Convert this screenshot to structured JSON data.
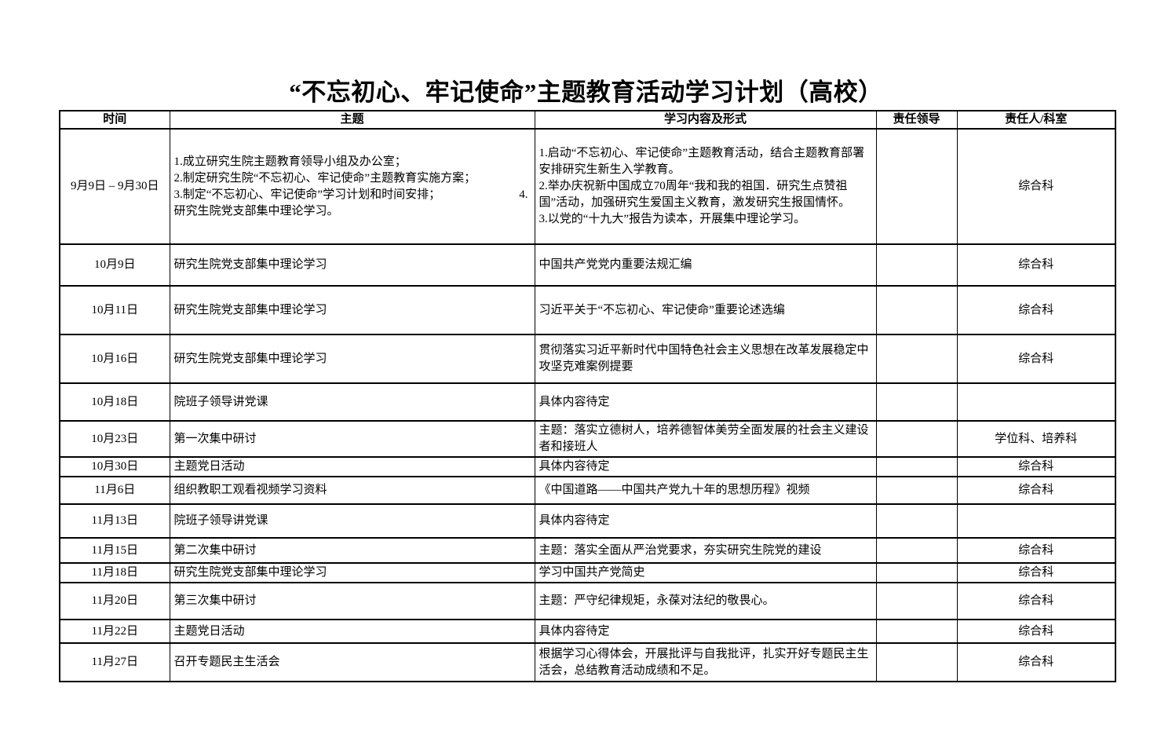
{
  "title": "“不忘初心、牢记使命”主题教育活动学习计划（高校）",
  "table": {
    "headers": [
      "时间",
      "主题",
      "学习内容及形式",
      "责任领导",
      "责任人/科室"
    ],
    "rows": [
      {
        "time": "9月9日 – 9月30日",
        "theme": [
          {
            "t": "1.成立研究生院主题教育领导小组及办公室；"
          },
          {
            "t": "2.制定研究生院“不忘初心、牢记使命”主题教育实施方案；"
          },
          {
            "l": "3.制定“不忘初心、牢记使命”学习计划和时间安排；",
            "r": "4."
          },
          {
            "t": "研究生院党支部集中理论学习。"
          }
        ],
        "content": [
          {
            "t": "1.启动“不忘初心、牢记使命”主题教育活动，结合主题教育部署安排研究生新生入学教育。"
          },
          {
            "t": "2.举办庆祝新中国成立70周年“我和我的祖国．研究生点赞祖国”活动，加强研究生爱国主义教育，激发研究生报国情怀。"
          },
          {
            "t": "3.以党的“十九大”报告为读本，开展集中理论学习。"
          }
        ],
        "leader": "",
        "dept": "综合科"
      },
      {
        "time": "10月9日",
        "theme": "研究生院党支部集中理论学习",
        "content": "中国共产党党内重要法规汇编",
        "leader": "",
        "dept": "综合科"
      },
      {
        "time": "10月11日",
        "theme": "研究生院党支部集中理论学习",
        "content": "习近平关于“不忘初心、牢记使命”重要论述选编",
        "leader": "",
        "dept": "综合科"
      },
      {
        "time": "10月16日",
        "theme": "研究生院党支部集中理论学习",
        "content": "贯彻落实习近平新时代中国特色社会主义思想在改革发展稳定中攻坚克难案例提要",
        "leader": "",
        "dept": "综合科"
      },
      {
        "time": "10月18日",
        "theme": "院班子领导讲党课",
        "content": "具体内容待定",
        "leader": "",
        "dept": ""
      },
      {
        "time": "10月23日",
        "theme": "第一次集中研讨",
        "content": "主题：落实立德树人，培养德智体美劳全面发展的社会主义建设者和接班人",
        "leader": "",
        "dept": "学位科、培养科"
      },
      {
        "time": "10月30日",
        "theme": "主题党日活动",
        "content": "具体内容待定",
        "leader": "",
        "dept": "综合科"
      },
      {
        "time": "11月6日",
        "theme": "组织教职工观看视频学习资料",
        "content": "《中国道路——中国共产党九十年的思想历程》视频",
        "leader": "",
        "dept": "综合科"
      },
      {
        "time": "11月13日",
        "theme": "院班子领导讲党课",
        "content": "具体内容待定",
        "leader": "",
        "dept": ""
      },
      {
        "time": "11月15日",
        "theme": "第二次集中研讨",
        "content": "主题：落实全面从严治党要求，夯实研究生院党的建设",
        "leader": "",
        "dept": "综合科"
      },
      {
        "time": "11月18日",
        "theme": "研究生院党支部集中理论学习",
        "content": "学习中国共产党简史",
        "leader": "",
        "dept": "综合科"
      },
      {
        "time": "11月20日",
        "theme": "第三次集中研讨",
        "content": "主题：严守纪律规矩，永葆对法纪的敬畏心。",
        "leader": "",
        "dept": "综合科"
      },
      {
        "time": "11月22日",
        "theme": "主题党日活动",
        "content": "具体内容待定",
        "leader": "",
        "dept": "综合科"
      },
      {
        "time": "11月27日",
        "theme": "召开专题民主生活会",
        "content": "根据学习心得体会，开展批评与自我批评，扎实开好专题民主生活会，总结教育活动成绩和不足。",
        "leader": "",
        "dept": "综合科"
      }
    ]
  }
}
